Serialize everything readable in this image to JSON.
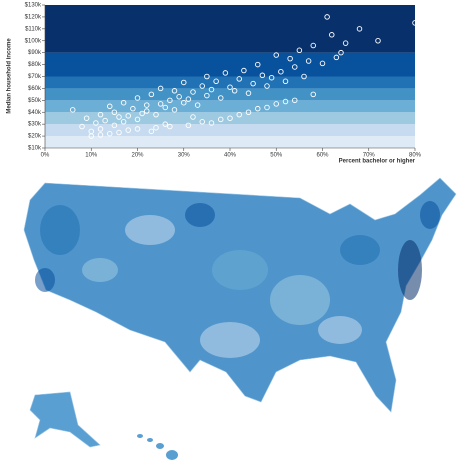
{
  "chart_data": {
    "type": "scatter",
    "y_label": "Median household income",
    "x_label": "Percent bachelor or higher",
    "xlim": [
      0,
      80
    ],
    "xticks": [
      {
        "value": 0,
        "label": "0%"
      },
      {
        "value": 10,
        "label": "10%"
      },
      {
        "value": 20,
        "label": "20%"
      },
      {
        "value": 30,
        "label": "30%"
      },
      {
        "value": 40,
        "label": "40%"
      },
      {
        "value": 50,
        "label": "50%"
      },
      {
        "value": 60,
        "label": "60%"
      },
      {
        "value": 70,
        "label": "70%"
      },
      {
        "value": 80,
        "label": "80%"
      }
    ],
    "ylim": [
      10,
      130
    ],
    "yticks": [
      {
        "value": 10,
        "label": "$10k"
      },
      {
        "value": 20,
        "label": "$20k"
      },
      {
        "value": 30,
        "label": "$30k"
      },
      {
        "value": 40,
        "label": "$40k"
      },
      {
        "value": 50,
        "label": "$50k"
      },
      {
        "value": 60,
        "label": "$60k"
      },
      {
        "value": 70,
        "label": "$70k"
      },
      {
        "value": 80,
        "label": "$80k"
      },
      {
        "value": 90,
        "label": "$90k"
      },
      {
        "value": 100,
        "label": "$100k"
      },
      {
        "value": 110,
        "label": "$110k"
      },
      {
        "value": 120,
        "label": "$120k"
      },
      {
        "value": 130,
        "label": "$130k"
      }
    ],
    "bands": {
      "thresholds": [
        10,
        20,
        30,
        40,
        50,
        60,
        70,
        90,
        130
      ],
      "colors": [
        "#deebf7",
        "#c6dbef",
        "#9ecae1",
        "#6baed6",
        "#4292c6",
        "#2171b5",
        "#08519c",
        "#08306b"
      ]
    },
    "color": "#ffffff",
    "x": [
      6,
      8,
      9,
      10,
      11,
      12,
      12,
      13,
      14,
      15,
      15,
      16,
      17,
      17,
      18,
      19,
      20,
      20,
      21,
      22,
      22,
      23,
      24,
      25,
      25,
      26,
      27,
      28,
      28,
      29,
      30,
      30,
      31,
      32,
      33,
      34,
      35,
      35,
      36,
      37,
      38,
      39,
      40,
      41,
      42,
      43,
      44,
      45,
      46,
      47,
      48,
      49,
      50,
      51,
      52,
      53,
      54,
      55,
      56,
      57,
      58,
      60,
      62,
      64,
      65,
      68,
      72,
      80,
      14,
      18,
      24,
      26,
      32,
      36,
      40,
      44,
      48,
      52,
      58,
      61,
      63,
      10,
      12,
      16,
      20,
      23,
      27,
      31,
      34,
      38,
      42,
      46,
      50,
      54
    ],
    "values": [
      42,
      28,
      35,
      24,
      31,
      38,
      26,
      33,
      45,
      29,
      40,
      36,
      32,
      48,
      37,
      43,
      34,
      52,
      39,
      46,
      41,
      55,
      38,
      47,
      60,
      44,
      50,
      42,
      58,
      53,
      48,
      65,
      51,
      57,
      46,
      62,
      54,
      70,
      59,
      66,
      52,
      73,
      61,
      58,
      68,
      75,
      56,
      64,
      80,
      71,
      62,
      69,
      88,
      74,
      66,
      85,
      78,
      92,
      70,
      83,
      96,
      81,
      105,
      90,
      98,
      110,
      100,
      115,
      22,
      25,
      27,
      30,
      36,
      31,
      35,
      40,
      44,
      49,
      55,
      120,
      86,
      20,
      21,
      23,
      26,
      24,
      28,
      29,
      32,
      34,
      38,
      43,
      47,
      50
    ]
  }
}
